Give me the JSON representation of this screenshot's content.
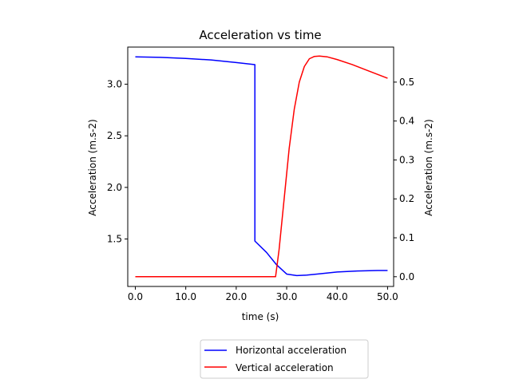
{
  "chart_data": {
    "type": "line",
    "title": "Acceleration vs time",
    "xlabel": "time (s)",
    "ylabel_left": "Acceleration (m.s-2)",
    "ylabel_right": "Acceleration (m.s-2)",
    "xlim": [
      -1.5,
      51.2
    ],
    "ylim_left": [
      1.04,
      3.36
    ],
    "ylim_right": [
      -0.025,
      0.59
    ],
    "x_ticks": [
      0,
      10,
      20,
      30,
      40,
      50
    ],
    "x_tick_labels": [
      "0.0",
      "10.0",
      "20.0",
      "30.0",
      "40.0",
      "50.0"
    ],
    "y_left_ticks": [
      1.5,
      2.0,
      2.5,
      3.0
    ],
    "y_left_tick_labels": [
      "1.5",
      "2.0",
      "2.5",
      "3.0"
    ],
    "y_right_ticks": [
      0.0,
      0.1,
      0.2,
      0.3,
      0.4,
      0.5
    ],
    "y_right_tick_labels": [
      "0.0",
      "0.1",
      "0.2",
      "0.3",
      "0.4",
      "0.5"
    ],
    "grid": false,
    "legend_placement": "below plot",
    "series": [
      {
        "name": "Horizontal acceleration",
        "color": "#0000ff",
        "axis": "left",
        "x": [
          0,
          5,
          10,
          15,
          20,
          23.7,
          23.7,
          26,
          28,
          30,
          32,
          34,
          36,
          40,
          44,
          48,
          50
        ],
        "y": [
          3.265,
          3.26,
          3.25,
          3.235,
          3.21,
          3.19,
          1.48,
          1.37,
          1.25,
          1.16,
          1.145,
          1.15,
          1.16,
          1.18,
          1.19,
          1.195,
          1.195
        ]
      },
      {
        "name": "Vertical acceleration",
        "color": "#ff0000",
        "axis": "right",
        "x": [
          0,
          10,
          20,
          27.5,
          27.8,
          28.5,
          29.5,
          30.5,
          31.5,
          32.5,
          33.5,
          34.5,
          35.5,
          36.5,
          38,
          40,
          43,
          46,
          50
        ],
        "y": [
          0.0,
          0.0,
          0.0,
          0.0,
          0.0,
          0.07,
          0.2,
          0.33,
          0.43,
          0.5,
          0.54,
          0.56,
          0.566,
          0.567,
          0.565,
          0.558,
          0.545,
          0.53,
          0.51
        ]
      }
    ]
  }
}
